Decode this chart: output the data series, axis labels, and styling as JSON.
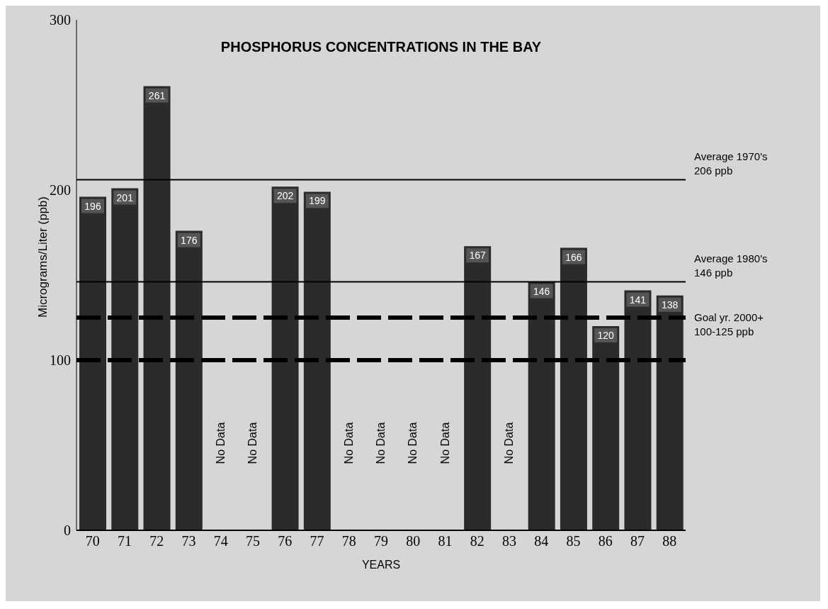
{
  "chart_data": {
    "type": "bar",
    "title": "PHOSPHORUS CONCENTRATIONS IN THE BAY",
    "xlabel": "YEARS",
    "ylabel": "Micrograms/Liter (ppb)",
    "categories": [
      "70",
      "71",
      "72",
      "73",
      "74",
      "75",
      "76",
      "77",
      "78",
      "79",
      "80",
      "81",
      "82",
      "83",
      "84",
      "85",
      "86",
      "87",
      "88"
    ],
    "values": [
      196,
      201,
      261,
      176,
      null,
      null,
      202,
      199,
      null,
      null,
      null,
      null,
      167,
      null,
      146,
      166,
      120,
      141,
      138
    ],
    "color": "#2b2b2b",
    "data_labels": true,
    "ylim": [
      0,
      300
    ],
    "yticks": [
      0,
      100,
      200,
      300
    ],
    "grid": false,
    "legend": false,
    "ref_lines": [
      {
        "axis": "y",
        "value": 206,
        "label": "Average 1970's\n206 ppb",
        "color": "#000000",
        "line_style": "solid"
      },
      {
        "axis": "y",
        "value": 146,
        "label": "Average 1980's\n146 ppb",
        "color": "#000000",
        "line_style": "solid"
      },
      {
        "axis": "y",
        "value": 125,
        "label": "Goal yr. 2000+\n100-125 ppb",
        "color": "#000000",
        "line_style": "dashed"
      },
      {
        "axis": "y",
        "value": 100,
        "color": "#000000",
        "line_style": "dashed"
      }
    ],
    "annotations": [
      "No Data",
      "No Data",
      "No Data",
      "No Data",
      "No Data",
      "No Data",
      "No Data"
    ]
  }
}
